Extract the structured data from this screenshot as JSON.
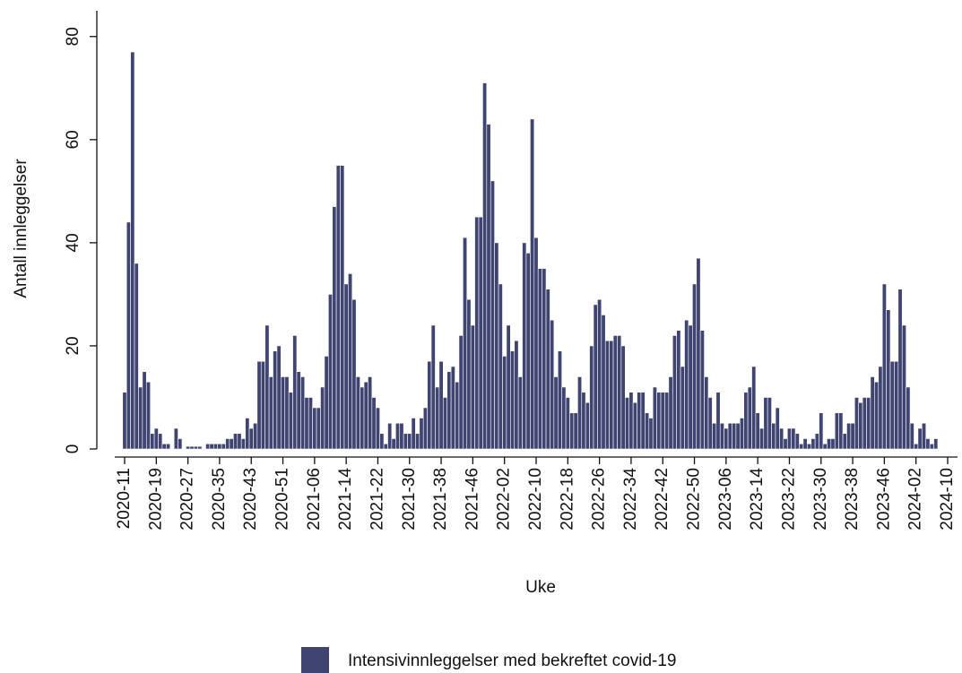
{
  "chart_data": {
    "type": "bar",
    "x_label": "Uke",
    "y_label": "Antall innleggelser",
    "categories": [
      "2020-11",
      null,
      null,
      null,
      null,
      null,
      null,
      null,
      "2020-19",
      null,
      null,
      null,
      null,
      null,
      null,
      null,
      "2020-27",
      null,
      null,
      null,
      null,
      null,
      null,
      null,
      "2020-35",
      null,
      null,
      null,
      null,
      null,
      null,
      null,
      "2020-43",
      null,
      null,
      null,
      null,
      null,
      null,
      null,
      "2020-51",
      null,
      null,
      null,
      null,
      null,
      null,
      null,
      "2021-06",
      null,
      null,
      null,
      null,
      null,
      null,
      null,
      "2021-14",
      null,
      null,
      null,
      null,
      null,
      null,
      null,
      "2021-22",
      null,
      null,
      null,
      null,
      null,
      null,
      null,
      "2021-30",
      null,
      null,
      null,
      null,
      null,
      null,
      null,
      "2021-38",
      null,
      null,
      null,
      null,
      null,
      null,
      null,
      "2021-46",
      null,
      null,
      null,
      null,
      null,
      null,
      null,
      "2022-02",
      null,
      null,
      null,
      null,
      null,
      null,
      null,
      "2022-10",
      null,
      null,
      null,
      null,
      null,
      null,
      null,
      "2022-18",
      null,
      null,
      null,
      null,
      null,
      null,
      null,
      "2022-26",
      null,
      null,
      null,
      null,
      null,
      null,
      null,
      "2022-34",
      null,
      null,
      null,
      null,
      null,
      null,
      null,
      "2022-42",
      null,
      null,
      null,
      null,
      null,
      null,
      null,
      "2022-50",
      null,
      null,
      null,
      null,
      null,
      null,
      null,
      "2023-06",
      null,
      null,
      null,
      null,
      null,
      null,
      null,
      "2023-14",
      null,
      null,
      null,
      null,
      null,
      null,
      null,
      "2023-22",
      null,
      null,
      null,
      null,
      null,
      null,
      null,
      "2023-30",
      null,
      null,
      null,
      null,
      null,
      null,
      null,
      "2023-38",
      null,
      null,
      null,
      null,
      null,
      null,
      null,
      "2023-46",
      null,
      null,
      null,
      null,
      null,
      null,
      null,
      "2024-02",
      null,
      null,
      null,
      null,
      null,
      null,
      null,
      "2024-10"
    ],
    "series": [
      {
        "name": "Intensivinnleggelser med bekreftet covid-19",
        "color": "#3f4471",
        "values": [
          11,
          44,
          77,
          36,
          12,
          15,
          13,
          3,
          4,
          3,
          1,
          1,
          0,
          4,
          2,
          0,
          0.5,
          0.5,
          0.5,
          0.5,
          0,
          1,
          1,
          1,
          1,
          1,
          2,
          2,
          3,
          3,
          2,
          6,
          4,
          5,
          17,
          17,
          24,
          14,
          19,
          20,
          14,
          14,
          11,
          22,
          15,
          14,
          10,
          10,
          8,
          8,
          12,
          18,
          30,
          47,
          55,
          55,
          32,
          34,
          29,
          14,
          12,
          13,
          14,
          10,
          8,
          3,
          1,
          5,
          2,
          5,
          5,
          3,
          3,
          6,
          3,
          6,
          8,
          17,
          24,
          12,
          17,
          10,
          15,
          16,
          13,
          22,
          41,
          29,
          24,
          45,
          45,
          71,
          63,
          52,
          40,
          32,
          18,
          24,
          19,
          21,
          14,
          40,
          38,
          64,
          41,
          35,
          35,
          31,
          25,
          14,
          19,
          12,
          10,
          7,
          7,
          14,
          11,
          9,
          20,
          28,
          29,
          26,
          21,
          21,
          22,
          22,
          20,
          10,
          11,
          9,
          11,
          11,
          7,
          6,
          12,
          11,
          11,
          11,
          14,
          22,
          23,
          16,
          25,
          24,
          32,
          37,
          23,
          14,
          10,
          5,
          11,
          5,
          4,
          5,
          5,
          5,
          6,
          11,
          12,
          16,
          7,
          4,
          10,
          10,
          5,
          8,
          4,
          2,
          4,
          4,
          3,
          1,
          2,
          1,
          2,
          3,
          7,
          1,
          2,
          2,
          7,
          7,
          3,
          5,
          5,
          10,
          9,
          10,
          10,
          14,
          13,
          16,
          32,
          27,
          17,
          17,
          31,
          24,
          12,
          5,
          1,
          4,
          5,
          2,
          1,
          2,
          null,
          null,
          null
        ]
      }
    ],
    "ylim": [
      0,
      85
    ],
    "yticks": [
      0,
      20,
      40,
      60,
      80
    ],
    "grid": false
  }
}
